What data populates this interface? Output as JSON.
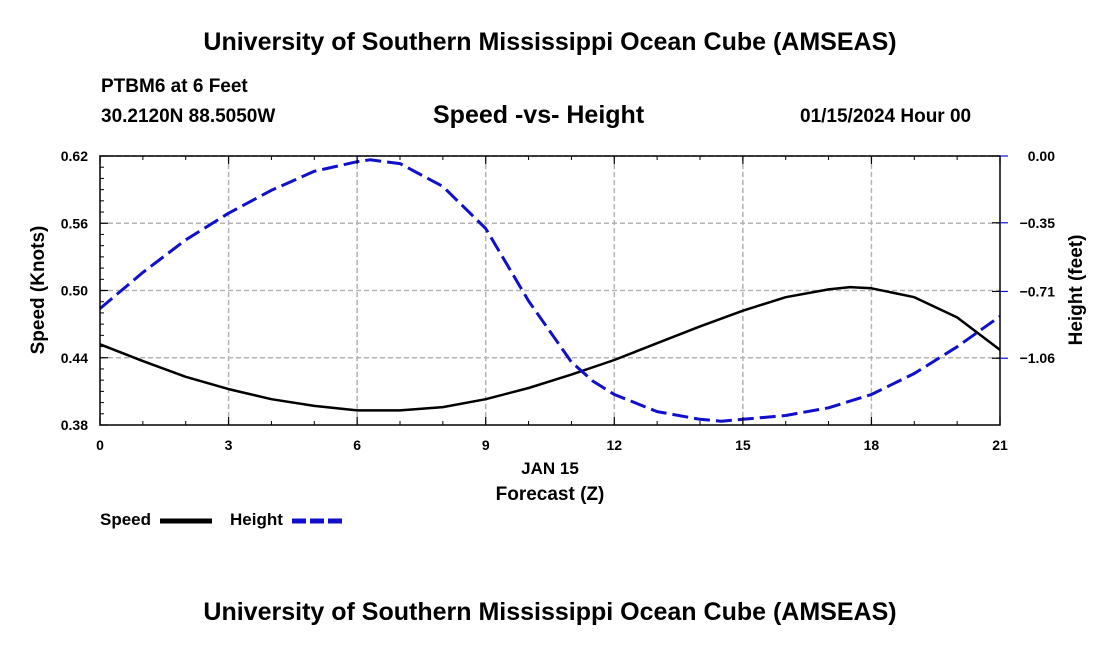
{
  "header": {
    "title": "University of Southern Mississippi Ocean Cube (AMSEAS)",
    "station": "PTBM6 at 6 Feet",
    "coordinates": "30.2120N  88.5050W",
    "date": "01/15/2024 Hour 00"
  },
  "footer": {
    "title": "University of Southern Mississippi Ocean Cube (AMSEAS)"
  },
  "chart_data": {
    "type": "line",
    "title": "Speed -vs- Height",
    "xlabel": "Forecast (Z)",
    "xlabel_date": "JAN 15",
    "ylabel": "Speed (Knots)",
    "y2label": "Height (feet)",
    "xlim": [
      0,
      21
    ],
    "ylim": [
      0.38,
      0.62
    ],
    "y2lim": [
      -1.41,
      0.0
    ],
    "x_ticks": [
      "0",
      "3",
      "6",
      "9",
      "12",
      "15",
      "18",
      "21"
    ],
    "y_ticks": [
      "0.62",
      "0.56",
      "0.50",
      "0.44",
      "0.38"
    ],
    "y2_ticks": [
      "0.00",
      "−0.35",
      "−0.71",
      "−1.06"
    ],
    "y2_tick_values": [
      0.0,
      -0.35,
      -0.71,
      -1.06
    ],
    "grid": true,
    "legend_position": "bottom-left",
    "series": [
      {
        "name": "Speed",
        "axis": "left",
        "color": "#000000",
        "style": "solid",
        "x": [
          0,
          1,
          2,
          3,
          4,
          5,
          6,
          6.5,
          7,
          8,
          9,
          10,
          11,
          12,
          13,
          14,
          15,
          16,
          17,
          17.5,
          18,
          19,
          20,
          21
        ],
        "values": [
          0.452,
          0.437,
          0.423,
          0.412,
          0.403,
          0.397,
          0.393,
          0.393,
          0.393,
          0.396,
          0.403,
          0.413,
          0.425,
          0.438,
          0.453,
          0.468,
          0.482,
          0.494,
          0.501,
          0.503,
          0.502,
          0.494,
          0.476,
          0.447
        ]
      },
      {
        "name": "Height",
        "axis": "right",
        "color": "#1010cc",
        "style": "dashed",
        "x": [
          0,
          1,
          2,
          3,
          4,
          5,
          6,
          6.3,
          7,
          8,
          9,
          10,
          11,
          11.5,
          12,
          13,
          14,
          14.5,
          15,
          16,
          17,
          18,
          19,
          20,
          21
        ],
        "values": [
          -0.8,
          -0.61,
          -0.44,
          -0.3,
          -0.18,
          -0.08,
          -0.03,
          -0.02,
          -0.04,
          -0.16,
          -0.38,
          -0.76,
          -1.08,
          -1.18,
          -1.25,
          -1.34,
          -1.38,
          -1.39,
          -1.38,
          -1.36,
          -1.32,
          -1.25,
          -1.14,
          -1.0,
          -0.84
        ]
      }
    ]
  }
}
